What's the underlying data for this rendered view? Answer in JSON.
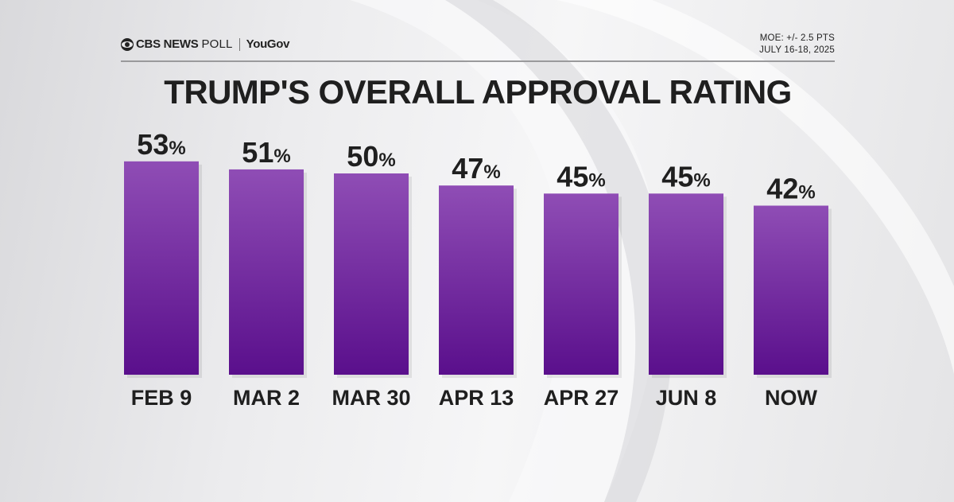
{
  "header": {
    "brand": "CBS NEWS",
    "poll": "POLL",
    "partner": "YouGov",
    "moe": "MOE: +/- 2.5 PTS",
    "dates": "JULY 16-18, 2025"
  },
  "colors": {
    "bar_top": "#8f4db5",
    "bar_bottom": "#5a0f8c",
    "text": "#1f1f1f"
  },
  "chart_data": {
    "type": "bar",
    "title": "TRUMP'S OVERALL APPROVAL RATING",
    "categories": [
      "FEB 9",
      "MAR 2",
      "MAR 30",
      "APR 13",
      "APR 27",
      "JUN 8",
      "NOW"
    ],
    "values": [
      53,
      51,
      50,
      47,
      45,
      45,
      42
    ],
    "value_suffix": "%",
    "grid": false,
    "legend": "none"
  }
}
